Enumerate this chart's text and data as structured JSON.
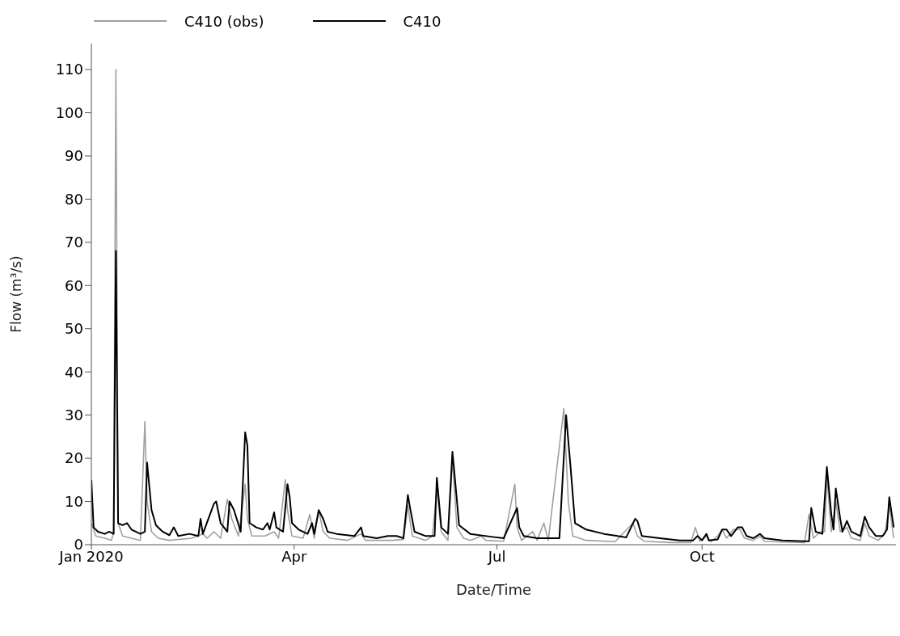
{
  "chart_data": {
    "type": "line",
    "xlabel": "Date/Time",
    "ylabel": "Flow (m³/s)",
    "xlim": [
      "2020-01-01",
      "2020-12-27"
    ],
    "xticks": [
      {
        "value": "2020-01-01",
        "label": "Jan 2020"
      },
      {
        "value": "2020-04-01",
        "label": "Apr"
      },
      {
        "value": "2020-07-01",
        "label": "Jul"
      },
      {
        "value": "2020-10-01",
        "label": "Oct"
      }
    ],
    "ylim": [
      0,
      116
    ],
    "yticks": [
      0,
      10,
      20,
      30,
      40,
      50,
      60,
      70,
      80,
      90,
      100,
      110
    ],
    "legend": "top left",
    "marker": "none",
    "line_style": "solid",
    "series": [
      {
        "name": "C410 (obs)",
        "color": "#a0a0a0",
        "x": [
          "2020-01-01",
          "2020-01-03",
          "2020-01-07",
          "2020-01-10",
          "2020-01-11",
          "2020-01-12",
          "2020-01-13",
          "2020-01-15",
          "2020-01-19",
          "2020-01-23",
          "2020-01-25",
          "2020-01-26",
          "2020-01-28",
          "2020-01-31",
          "2020-02-05",
          "2020-02-15",
          "2020-02-20",
          "2020-02-22",
          "2020-02-25",
          "2020-02-28",
          "2020-03-02",
          "2020-03-04",
          "2020-03-07",
          "2020-03-10",
          "2020-03-11",
          "2020-03-13",
          "2020-03-19",
          "2020-03-23",
          "2020-03-25",
          "2020-03-28",
          "2020-03-29",
          "2020-03-31",
          "2020-04-05",
          "2020-04-08",
          "2020-04-10",
          "2020-04-12",
          "2020-04-14",
          "2020-04-17",
          "2020-04-25",
          "2020-05-01",
          "2020-05-03",
          "2020-05-15",
          "2020-05-20",
          "2020-05-22",
          "2020-05-24",
          "2020-05-30",
          "2020-06-02",
          "2020-06-04",
          "2020-06-06",
          "2020-06-09",
          "2020-06-11",
          "2020-06-13",
          "2020-06-16",
          "2020-06-19",
          "2020-06-24",
          "2020-06-26",
          "2020-07-04",
          "2020-07-09",
          "2020-07-10",
          "2020-07-12",
          "2020-07-17",
          "2020-07-19",
          "2020-07-22",
          "2020-07-24",
          "2020-07-31",
          "2020-08-02",
          "2020-08-04",
          "2020-08-10",
          "2020-08-23",
          "2020-08-31",
          "2020-09-02",
          "2020-09-05",
          "2020-09-17",
          "2020-09-26",
          "2020-09-28",
          "2020-09-30",
          "2020-10-03",
          "2020-10-05",
          "2020-10-08",
          "2020-10-10",
          "2020-10-12",
          "2020-10-15",
          "2020-10-18",
          "2020-10-20",
          "2020-10-24",
          "2020-10-27",
          "2020-10-29",
          "2020-11-06",
          "2020-11-16",
          "2020-11-18",
          "2020-11-20",
          "2020-11-23",
          "2020-11-25",
          "2020-11-26",
          "2020-11-28",
          "2020-11-30",
          "2020-12-02",
          "2020-12-05",
          "2020-12-07",
          "2020-12-11",
          "2020-12-13",
          "2020-12-15",
          "2020-12-19",
          "2020-12-22",
          "2020-12-24",
          "2020-12-26"
        ],
        "values": [
          5,
          2,
          1.5,
          1,
          3,
          110,
          5,
          2,
          1.5,
          1,
          28.5,
          10,
          3,
          1.5,
          1,
          1.5,
          2.5,
          1.5,
          3,
          1.5,
          10.5,
          6,
          2,
          14,
          6,
          2,
          2,
          3,
          1.5,
          15,
          8,
          2,
          1.5,
          7,
          1.5,
          8,
          3,
          1.5,
          1,
          2.5,
          1,
          1,
          1.2,
          9,
          2,
          1,
          2,
          13,
          3,
          1,
          20,
          4,
          1.5,
          1,
          2,
          1,
          0.8,
          14,
          4,
          1,
          3,
          1,
          5,
          1,
          31.5,
          10,
          2,
          1,
          0.7,
          5,
          2,
          0.8,
          0.5,
          0.5,
          4,
          0.8,
          2,
          0.7,
          2,
          3.5,
          1.5,
          3.5,
          3.5,
          1.5,
          1,
          2,
          0.8,
          0.6,
          0.5,
          7,
          1.5,
          3,
          3,
          16,
          3,
          10,
          3,
          4,
          1.5,
          1,
          5,
          2,
          1,
          2.5,
          9,
          1.5
        ]
      },
      {
        "name": "C410",
        "color": "#000000",
        "x": [
          "2020-01-01",
          "2020-01-02",
          "2020-01-04",
          "2020-01-07",
          "2020-01-09",
          "2020-01-11",
          "2020-01-12",
          "2020-01-13",
          "2020-01-15",
          "2020-01-17",
          "2020-01-19",
          "2020-01-23",
          "2020-01-25",
          "2020-01-26",
          "2020-01-28",
          "2020-01-30",
          "2020-02-02",
          "2020-02-05",
          "2020-02-07",
          "2020-02-09",
          "2020-02-14",
          "2020-02-18",
          "2020-02-19",
          "2020-02-20",
          "2020-02-25",
          "2020-02-26",
          "2020-02-28",
          "2020-03-02",
          "2020-03-03",
          "2020-03-05",
          "2020-03-08",
          "2020-03-10",
          "2020-03-11",
          "2020-03-12",
          "2020-03-15",
          "2020-03-18",
          "2020-03-20",
          "2020-03-21",
          "2020-03-23",
          "2020-03-24",
          "2020-03-27",
          "2020-03-29",
          "2020-03-30",
          "2020-03-31",
          "2020-04-03",
          "2020-04-07",
          "2020-04-09",
          "2020-04-10",
          "2020-04-12",
          "2020-04-14",
          "2020-04-16",
          "2020-04-20",
          "2020-04-28",
          "2020-05-01",
          "2020-05-02",
          "2020-05-08",
          "2020-05-13",
          "2020-05-17",
          "2020-05-20",
          "2020-05-22",
          "2020-05-23",
          "2020-05-25",
          "2020-05-30",
          "2020-06-03",
          "2020-06-04",
          "2020-06-06",
          "2020-06-09",
          "2020-06-11",
          "2020-06-12",
          "2020-06-14",
          "2020-06-19",
          "2020-06-29",
          "2020-07-04",
          "2020-07-10",
          "2020-07-11",
          "2020-07-13",
          "2020-07-19",
          "2020-07-29",
          "2020-08-01",
          "2020-08-03",
          "2020-08-05",
          "2020-08-10",
          "2020-08-18",
          "2020-08-28",
          "2020-09-01",
          "2020-09-02",
          "2020-09-04",
          "2020-09-12",
          "2020-09-21",
          "2020-09-27",
          "2020-09-29",
          "2020-10-01",
          "2020-10-03",
          "2020-10-04",
          "2020-10-08",
          "2020-10-10",
          "2020-10-12",
          "2020-10-14",
          "2020-10-17",
          "2020-10-19",
          "2020-10-21",
          "2020-10-24",
          "2020-10-27",
          "2020-10-29",
          "2020-11-06",
          "2020-11-16",
          "2020-11-18",
          "2020-11-19",
          "2020-11-21",
          "2020-11-24",
          "2020-11-26",
          "2020-11-28",
          "2020-11-29",
          "2020-11-30",
          "2020-12-02",
          "2020-12-03",
          "2020-12-05",
          "2020-12-07",
          "2020-12-11",
          "2020-12-13",
          "2020-12-15",
          "2020-12-18",
          "2020-12-21",
          "2020-12-23",
          "2020-12-24",
          "2020-12-26"
        ],
        "values": [
          15,
          4,
          3,
          2.5,
          3,
          2.5,
          68,
          5,
          4.5,
          5,
          3.5,
          2.5,
          3,
          19,
          8,
          4.5,
          3,
          2.2,
          4,
          2,
          2.5,
          2,
          6,
          2.5,
          9.5,
          10,
          5,
          3,
          10,
          8,
          3,
          26,
          23,
          5,
          4,
          3.5,
          5,
          3.5,
          7.5,
          4,
          3,
          14,
          11,
          5,
          3.5,
          2.5,
          5,
          2.5,
          8,
          6,
          3,
          2.5,
          2,
          4,
          2,
          1.5,
          2,
          2,
          1.5,
          11.5,
          8.5,
          3,
          2,
          2,
          15.5,
          4,
          2.5,
          21.5,
          16,
          4.5,
          2.5,
          1.8,
          1.5,
          8.5,
          4,
          2,
          1.5,
          1.5,
          30,
          18,
          5,
          3.5,
          2.5,
          1.7,
          6,
          5.5,
          2,
          1.5,
          1,
          1,
          2,
          1,
          2.5,
          1,
          1.2,
          3.5,
          3.5,
          2,
          4,
          4,
          2,
          1.5,
          2.5,
          1.5,
          1,
          0.8,
          0.8,
          8.5,
          3,
          2.5,
          18,
          7,
          3.5,
          13,
          6,
          3,
          5.5,
          3,
          2,
          6.5,
          4,
          2,
          2,
          3.5,
          11,
          4
        ]
      }
    ]
  }
}
